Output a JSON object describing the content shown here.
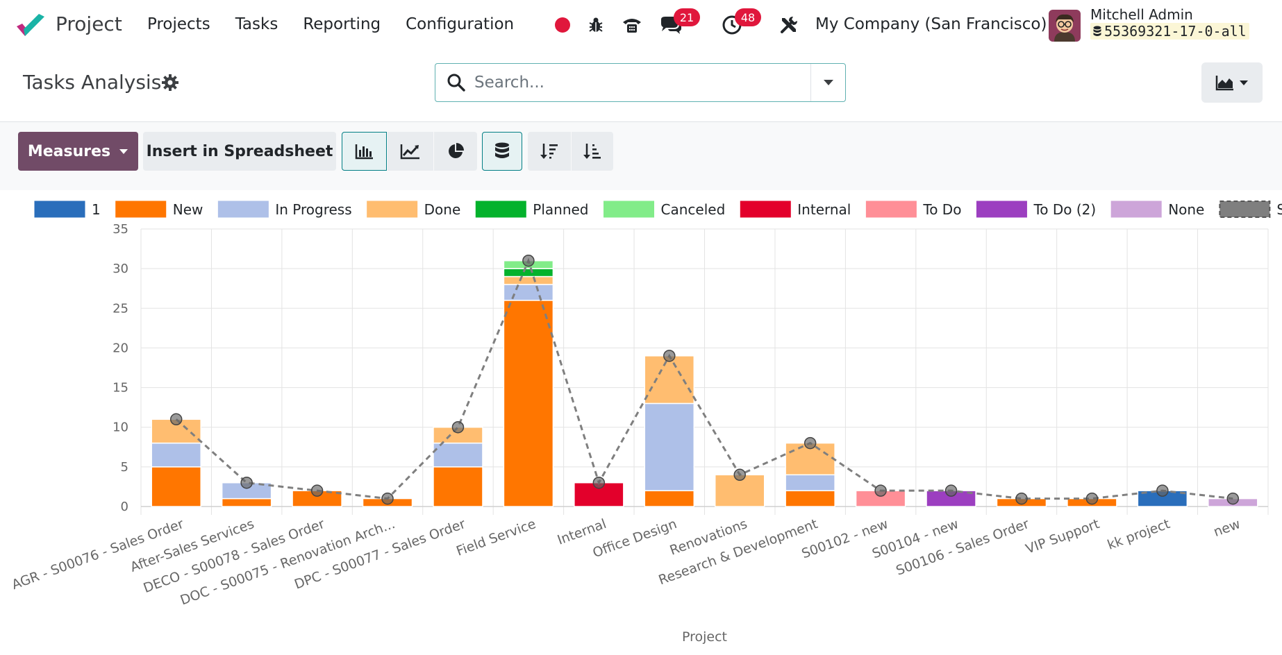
{
  "navbar": {
    "app_name": "Project",
    "menu": [
      "Projects",
      "Tasks",
      "Reporting",
      "Configuration"
    ],
    "chat_count": "21",
    "activity_count": "48",
    "company": "My Company (San Francisco)",
    "user_name": "Mitchell Admin",
    "db_name": "55369321-17-0-all"
  },
  "control": {
    "title": "Tasks Analysis",
    "search_placeholder": "Search..."
  },
  "toolbar": {
    "measures_label": "Measures",
    "insert_label": "Insert in Spreadsheet"
  },
  "colors": {
    "brand": "#714b67",
    "accent": "#017e84"
  },
  "chart_data": {
    "type": "bar",
    "stacked": true,
    "xlabel": "Project",
    "ylabel": "",
    "ylim": [
      0,
      35
    ],
    "yticks": [
      0,
      5,
      10,
      15,
      20,
      25,
      30,
      35
    ],
    "grid": true,
    "legend_position": "top",
    "categories": [
      "AGR - S00076 - Sales Order",
      "After-Sales Services",
      "DECO - S00078 - Sales Order",
      "DOC - S00075 - Renovation Arch...",
      "DPC - S00077 - Sales Order",
      "Field Service",
      "Internal",
      "Office Design",
      "Renovations",
      "Research & Development",
      "S00102 - new",
      "S00104 - new",
      "S00106 - Sales Order",
      "VIP Support",
      "kk project",
      "new"
    ],
    "series": [
      {
        "name": "1",
        "color": "#2a6ebb",
        "values": [
          0,
          0,
          0,
          0,
          0,
          0,
          0,
          0,
          0,
          0,
          0,
          0,
          0,
          0,
          2,
          0
        ]
      },
      {
        "name": "New",
        "color": "#ff7600",
        "values": [
          5,
          1,
          2,
          1,
          5,
          26,
          0,
          2,
          0,
          2,
          0,
          0,
          1,
          1,
          0,
          0
        ]
      },
      {
        "name": "In Progress",
        "color": "#aec0e8",
        "values": [
          3,
          2,
          0,
          0,
          3,
          2,
          0,
          11,
          0,
          2,
          0,
          0,
          0,
          0,
          0,
          0
        ]
      },
      {
        "name": "Done",
        "color": "#ffbd70",
        "values": [
          3,
          0,
          0,
          0,
          2,
          1,
          0,
          6,
          4,
          4,
          0,
          0,
          0,
          0,
          0,
          0
        ]
      },
      {
        "name": "Planned",
        "color": "#04b22c",
        "values": [
          0,
          0,
          0,
          0,
          0,
          1,
          0,
          0,
          0,
          0,
          0,
          0,
          0,
          0,
          0,
          0
        ]
      },
      {
        "name": "Canceled",
        "color": "#82ec89",
        "values": [
          0,
          0,
          0,
          0,
          0,
          1,
          0,
          0,
          0,
          0,
          0,
          0,
          0,
          0,
          0,
          0
        ]
      },
      {
        "name": "Internal",
        "color": "#e3002b",
        "values": [
          0,
          0,
          0,
          0,
          0,
          0,
          3,
          0,
          0,
          0,
          0,
          0,
          0,
          0,
          0,
          0
        ]
      },
      {
        "name": "To Do",
        "color": "#ff8f97",
        "values": [
          0,
          0,
          0,
          0,
          0,
          0,
          0,
          0,
          0,
          0,
          2,
          0,
          0,
          0,
          0,
          0
        ]
      },
      {
        "name": "To Do (2)",
        "color": "#9c3fc0",
        "values": [
          0,
          0,
          0,
          0,
          0,
          0,
          0,
          0,
          0,
          0,
          0,
          2,
          0,
          0,
          0,
          0
        ]
      },
      {
        "name": "None",
        "color": "#cda5d9",
        "values": [
          0,
          0,
          0,
          0,
          0,
          0,
          0,
          0,
          0,
          0,
          0,
          0,
          0,
          0,
          0,
          1
        ]
      }
    ],
    "sum": {
      "name": "Sum",
      "color": "#7f7f7f",
      "values": [
        11,
        3,
        2,
        1,
        10,
        31,
        3,
        19,
        4,
        8,
        2,
        2,
        1,
        1,
        2,
        1
      ]
    }
  }
}
